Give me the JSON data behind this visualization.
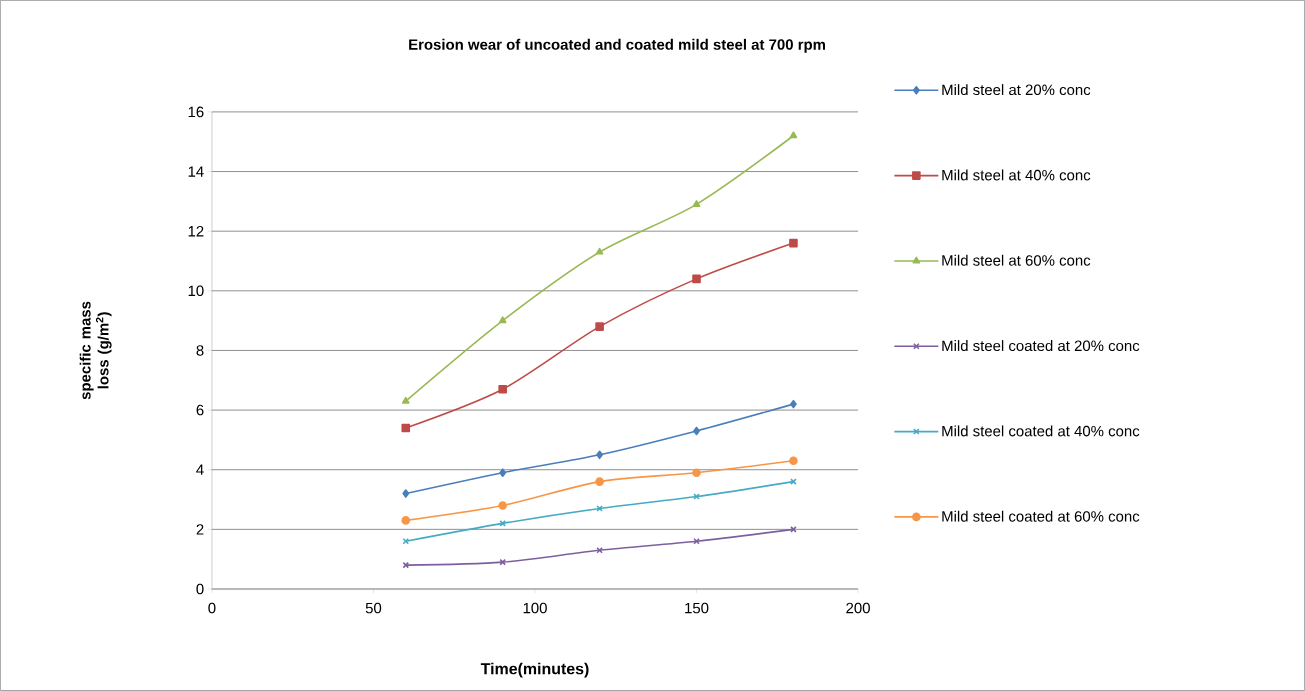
{
  "chart_data": {
    "type": "line",
    "title": "**Erosion wear of uncoated and coated mild steel at 700 rpm**",
    "xlabel": "**Time(minutes)**",
    "ylabel": "**specific mass loss (g/m$^{2}$)**",
    "x": [
      60,
      90,
      120,
      150,
      180
    ],
    "series": [
      {
        "name": "Mild steel at 20% conc",
        "color": "#4a7ebb",
        "marker": "diamond",
        "values": [
          3.2,
          3.9,
          4.5,
          5.3,
          6.2
        ]
      },
      {
        "name": "Mild steel at 40% conc",
        "color": "#be4b48",
        "marker": "square",
        "values": [
          5.4,
          6.7,
          8.8,
          10.4,
          11.6
        ]
      },
      {
        "name": "Mild steel at 60% conc",
        "color": "#98b954",
        "marker": "triangle",
        "values": [
          6.3,
          9.0,
          11.3,
          12.9,
          15.2
        ]
      },
      {
        "name": "Mild steel coated at 20% conc",
        "color": "#7d5fa0",
        "marker": "cross",
        "values": [
          0.8,
          0.9,
          1.3,
          1.6,
          2.0
        ]
      },
      {
        "name": "Mild steel coated at 40% conc",
        "color": "#46aac5",
        "marker": "cross",
        "values": [
          1.6,
          2.2,
          2.7,
          3.1,
          3.6
        ]
      },
      {
        "name": "Mild steel coated at 60% conc",
        "color": "#f79646",
        "marker": "circle",
        "values": [
          2.3,
          2.8,
          3.6,
          3.9,
          4.3
        ]
      }
    ],
    "xlim": [
      0,
      200
    ],
    "xticks": [
      0,
      50,
      100,
      150,
      200
    ],
    "ylim": [
      0,
      16
    ],
    "yticks": [
      0,
      2,
      4,
      6,
      8,
      10,
      12,
      14,
      16
    ],
    "grid": "y",
    "legend": "right"
  }
}
